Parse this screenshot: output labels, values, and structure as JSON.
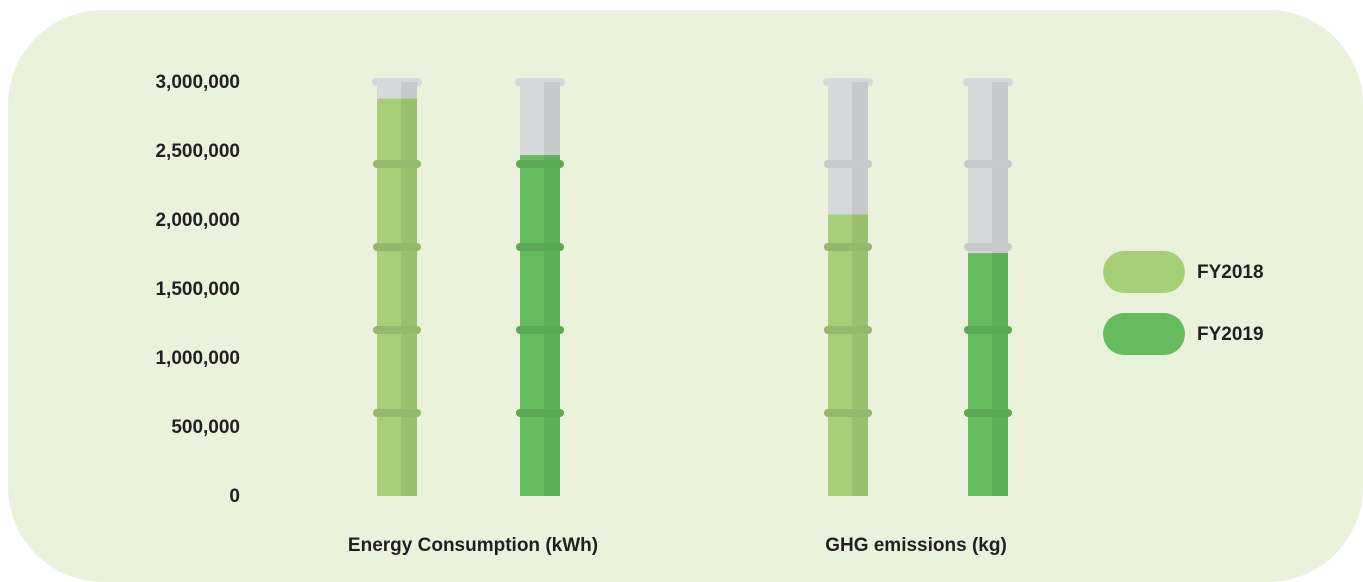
{
  "chart_data": {
    "type": "bar",
    "categories": [
      "Energy Consumption (kWh)",
      "GHG emissions (kg)"
    ],
    "series": [
      {
        "name": "FY2018",
        "color": "#a6cf77",
        "values": [
          2880000,
          2040000
        ]
      },
      {
        "name": "FY2019",
        "color": "#66bb5e",
        "values": [
          2470000,
          1760000
        ]
      }
    ],
    "ylim": [
      0,
      3000000
    ],
    "yticks": [
      0,
      {
        "value": 500000,
        "label": "500,000"
      },
      {
        "value": 1000000,
        "label": "1,000,000"
      },
      {
        "value": 1500000,
        "label": "1,500,000"
      },
      {
        "value": 2000000,
        "label": "2,000,000"
      },
      {
        "value": 2500000,
        "label": "2,500,000"
      },
      {
        "value": 3000000,
        "label": "3,000,000"
      }
    ],
    "legend": "right"
  }
}
